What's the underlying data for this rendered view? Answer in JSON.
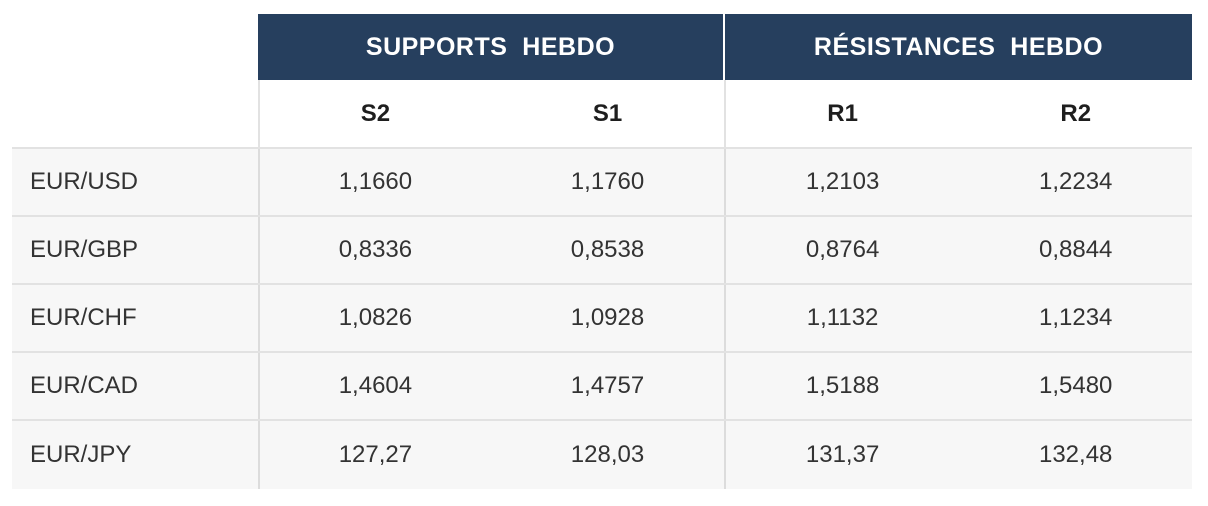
{
  "header": {
    "supports": "SUPPORTS  HEBDO",
    "resistances": "RÉSISTANCES  HEBDO"
  },
  "columns": [
    "S2",
    "S1",
    "R1",
    "R2"
  ],
  "rows": [
    {
      "pair": "EUR/USD",
      "values": [
        "1,1660",
        "1,1760",
        "1,2103",
        "1,2234"
      ]
    },
    {
      "pair": "EUR/GBP",
      "values": [
        "0,8336",
        "0,8538",
        "0,8764",
        "0,8844"
      ]
    },
    {
      "pair": "EUR/CHF",
      "values": [
        "1,0826",
        "1,0928",
        "1,1132",
        "1,1234"
      ]
    },
    {
      "pair": "EUR/CAD",
      "values": [
        "1,4604",
        "1,4757",
        "1,5188",
        "1,5480"
      ]
    },
    {
      "pair": "EUR/JPY",
      "values": [
        "127,27",
        "128,03",
        "131,37",
        "132,48"
      ]
    }
  ],
  "colors": {
    "header_bg": "#263f5e",
    "header_text": "#ffffff",
    "row_bg": "#f7f7f7",
    "border": "#e2e2e2"
  }
}
